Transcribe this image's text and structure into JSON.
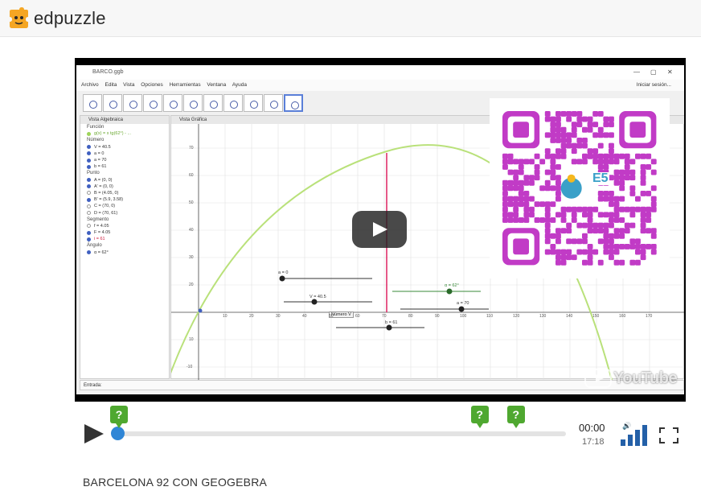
{
  "brand": {
    "name": "edpuzzle",
    "color": "#f5a623"
  },
  "video": {
    "geogebra": {
      "window_title": "BARCO.ggb",
      "menu": [
        "Archivo",
        "Edita",
        "Vista",
        "Opciones",
        "Herramientas",
        "Ventana",
        "Ayuda"
      ],
      "session": "Iniciar sesión...",
      "algebra_title": "Vista Algebraica",
      "graphics_title": "Vista Gráfica",
      "input_label": "Entrada:",
      "algebra": {
        "funcion_cat": "Función",
        "funcion": "g(x) = x tg(62°) - ...",
        "numero_cat": "Número",
        "numeros": [
          "V = 40.5",
          "a = 0",
          "a = 70",
          "b = 61"
        ],
        "punto_cat": "Punto",
        "puntos": [
          "A = (0, 0)",
          "A' = (0, 0)",
          "B = (4.05, 0)",
          "B' = (5.9, 3.58)",
          "C = (70, 0)",
          "D = (70, 61)"
        ],
        "segmento_cat": "Segmento",
        "segmentos": [
          "f = 4.05",
          "F = 4.05",
          "i = 61"
        ],
        "angulo_cat": "Ángulo",
        "angulo": "α = 62°"
      },
      "sliders": {
        "a0": "a = 0",
        "V": "V = 40.5",
        "alpha": "α = 62°",
        "a70": "a = 70",
        "b61": "b = 61",
        "tooltip": "Número V"
      },
      "x_ticks": [
        "10",
        "20",
        "30",
        "40",
        "50",
        "60",
        "70",
        "80",
        "90",
        "100",
        "110",
        "120",
        "130",
        "140",
        "150",
        "160",
        "170"
      ],
      "y_ticks": [
        "70",
        "60",
        "50",
        "40",
        "30",
        "20",
        "10",
        "-10"
      ]
    },
    "youtube_text": "YouTube",
    "qr_badge": "E5",
    "qr_color": "#c13bc6"
  },
  "player": {
    "current_time": "00:00",
    "total_time": "17:18",
    "progress": 0,
    "question_marks": [
      {
        "label": "?",
        "at": 0.0
      },
      {
        "label": "?",
        "at": 0.807
      },
      {
        "label": "?",
        "at": 0.888
      }
    ],
    "volume_level": 1.0,
    "accent": "#2f86d6",
    "question_color": "#4fa830"
  },
  "video_title": "BARCELONA 92 CON GEOGEBRA"
}
